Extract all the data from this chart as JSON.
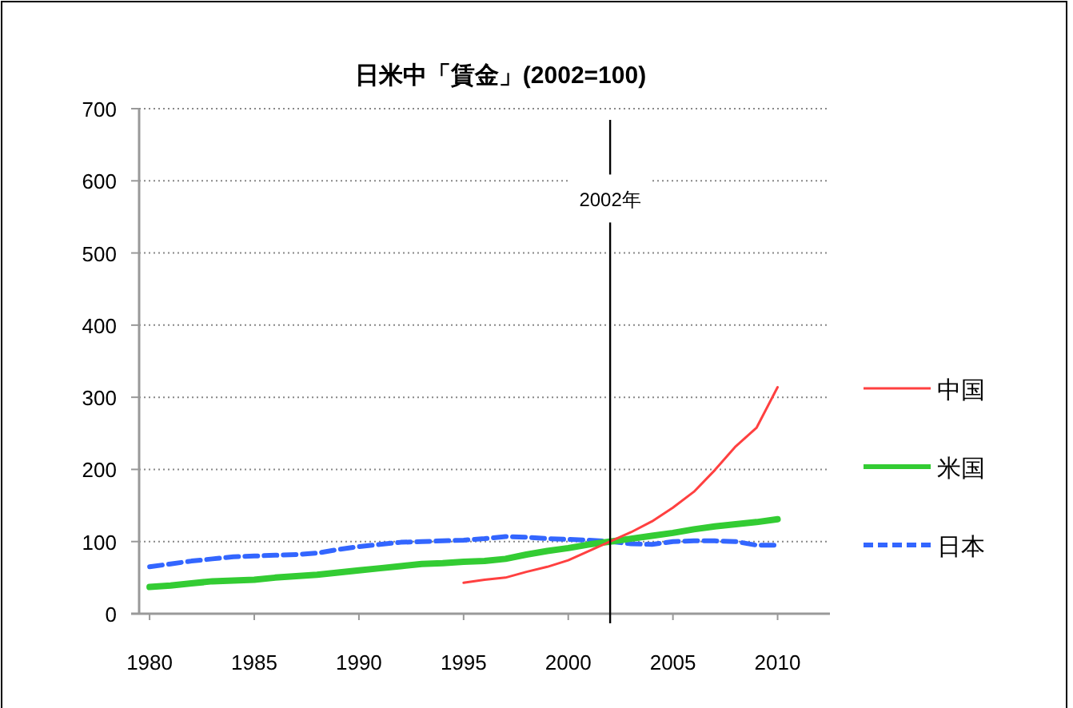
{
  "chart_data": {
    "type": "line",
    "title": "日米中「賃金」(2002=100)",
    "x": [
      1980,
      1981,
      1982,
      1983,
      1984,
      1985,
      1986,
      1987,
      1988,
      1989,
      1990,
      1991,
      1992,
      1993,
      1994,
      1995,
      1996,
      1997,
      1998,
      1999,
      2000,
      2001,
      2002,
      2003,
      2004,
      2005,
      2006,
      2007,
      2008,
      2009,
      2010
    ],
    "series": [
      {
        "name": "中国",
        "color": "#ff4040",
        "line_style": "solid",
        "values": [
          null,
          null,
          null,
          null,
          null,
          null,
          null,
          null,
          null,
          null,
          null,
          null,
          null,
          null,
          null,
          43,
          47,
          50,
          58,
          65,
          74,
          87,
          100,
          113,
          128,
          147,
          169,
          199,
          232,
          258,
          314
        ]
      },
      {
        "name": "米国",
        "color": "#33cc33",
        "line_style": "solid",
        "values": [
          37,
          39,
          42,
          45,
          46,
          47,
          50,
          52,
          54,
          57,
          60,
          63,
          66,
          69,
          70,
          72,
          73,
          76,
          82,
          87,
          91,
          96,
          100,
          104,
          108,
          112,
          117,
          121,
          124,
          127,
          131
        ]
      },
      {
        "name": "日本",
        "color": "#3366ff",
        "line_style": "dashed",
        "values": [
          65,
          69,
          73,
          76,
          79,
          80,
          81,
          82,
          84,
          89,
          93,
          96,
          99,
          100,
          101,
          102,
          104,
          107,
          106,
          104,
          103,
          102,
          100,
          97,
          96,
          100,
          101,
          101,
          100,
          95,
          95
        ]
      }
    ],
    "xlim": [
      1979.5,
      2012.5
    ],
    "xticks": [
      1980,
      1985,
      1990,
      1995,
      2000,
      2005,
      2010
    ],
    "ylim": [
      0,
      700
    ],
    "yticks": [
      0,
      100,
      200,
      300,
      400,
      500,
      600,
      700
    ],
    "ref_lines": [
      {
        "axis": "x",
        "value": 2002,
        "label": "2002年"
      }
    ],
    "grid": "y",
    "legend": "right",
    "marker": "none"
  }
}
